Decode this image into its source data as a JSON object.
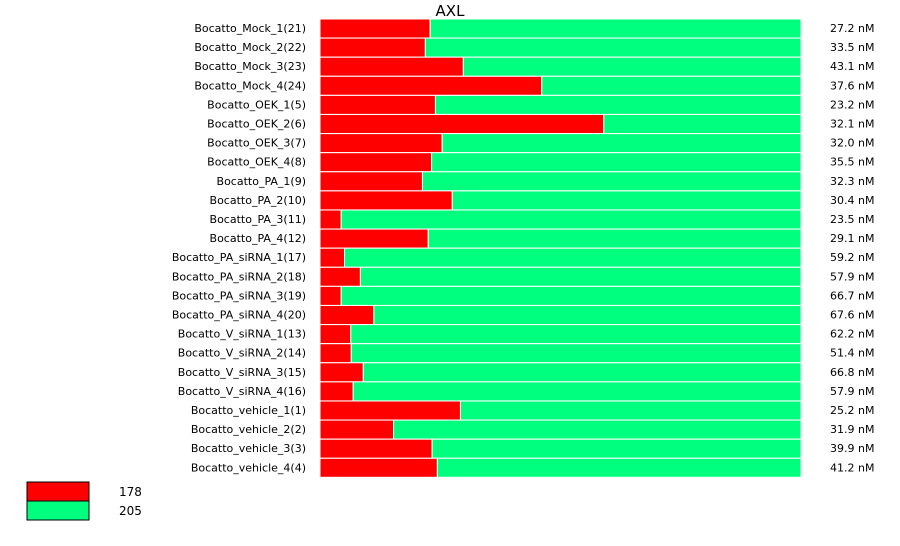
{
  "chart_data": {
    "type": "bar",
    "orientation": "horizontal",
    "stacked": "percent",
    "title": "AXL",
    "colors": {
      "178": "#ff0000",
      "205": "#00ff7f"
    },
    "legend": {
      "placement": "bottom-left",
      "entries": [
        "178",
        "205"
      ]
    },
    "categories": [
      "Bocatto_Mock_1(21)",
      "Bocatto_Mock_2(22)",
      "Bocatto_Mock_3(23)",
      "Bocatto_Mock_4(24)",
      "Bocatto_OEK_1(5)",
      "Bocatto_OEK_2(6)",
      "Bocatto_OEK_3(7)",
      "Bocatto_OEK_4(8)",
      "Bocatto_PA_1(9)",
      "Bocatto_PA_2(10)",
      "Bocatto_PA_3(11)",
      "Bocatto_PA_4(12)",
      "Bocatto_PA_siRNA_1(17)",
      "Bocatto_PA_siRNA_2(18)",
      "Bocatto_PA_siRNA_3(19)",
      "Bocatto_PA_siRNA_4(20)",
      "Bocatto_V_siRNA_1(13)",
      "Bocatto_V_siRNA_2(14)",
      "Bocatto_V_siRNA_3(15)",
      "Bocatto_V_siRNA_4(16)",
      "Bocatto_vehicle_1(1)",
      "Bocatto_vehicle_2(2)",
      "Bocatto_vehicle_3(3)",
      "Bocatto_vehicle_4(4)"
    ],
    "series": [
      {
        "name": "178",
        "values": [
          0.229,
          0.219,
          0.298,
          0.461,
          0.24,
          0.59,
          0.254,
          0.232,
          0.213,
          0.275,
          0.044,
          0.225,
          0.051,
          0.084,
          0.044,
          0.112,
          0.064,
          0.065,
          0.09,
          0.069,
          0.292,
          0.153,
          0.233,
          0.244
        ]
      },
      {
        "name": "205",
        "values": [
          0.771,
          0.781,
          0.702,
          0.539,
          0.76,
          0.41,
          0.746,
          0.768,
          0.787,
          0.725,
          0.956,
          0.775,
          0.949,
          0.916,
          0.956,
          0.888,
          0.936,
          0.935,
          0.91,
          0.931,
          0.708,
          0.847,
          0.767,
          0.756
        ]
      }
    ],
    "totals": [
      "27.2 nM",
      "33.5 nM",
      "43.1 nM",
      "37.6 nM",
      "23.2 nM",
      "32.1 nM",
      "32.0 nM",
      "35.5 nM",
      "32.3 nM",
      "30.4 nM",
      "23.5 nM",
      "29.1 nM",
      "59.2 nM",
      "57.9 nM",
      "66.7 nM",
      "67.6 nM",
      "62.2 nM",
      "51.4 nM",
      "66.8 nM",
      "57.9 nM",
      "25.2 nM",
      "31.9 nM",
      "39.9 nM",
      "41.2 nM"
    ]
  }
}
